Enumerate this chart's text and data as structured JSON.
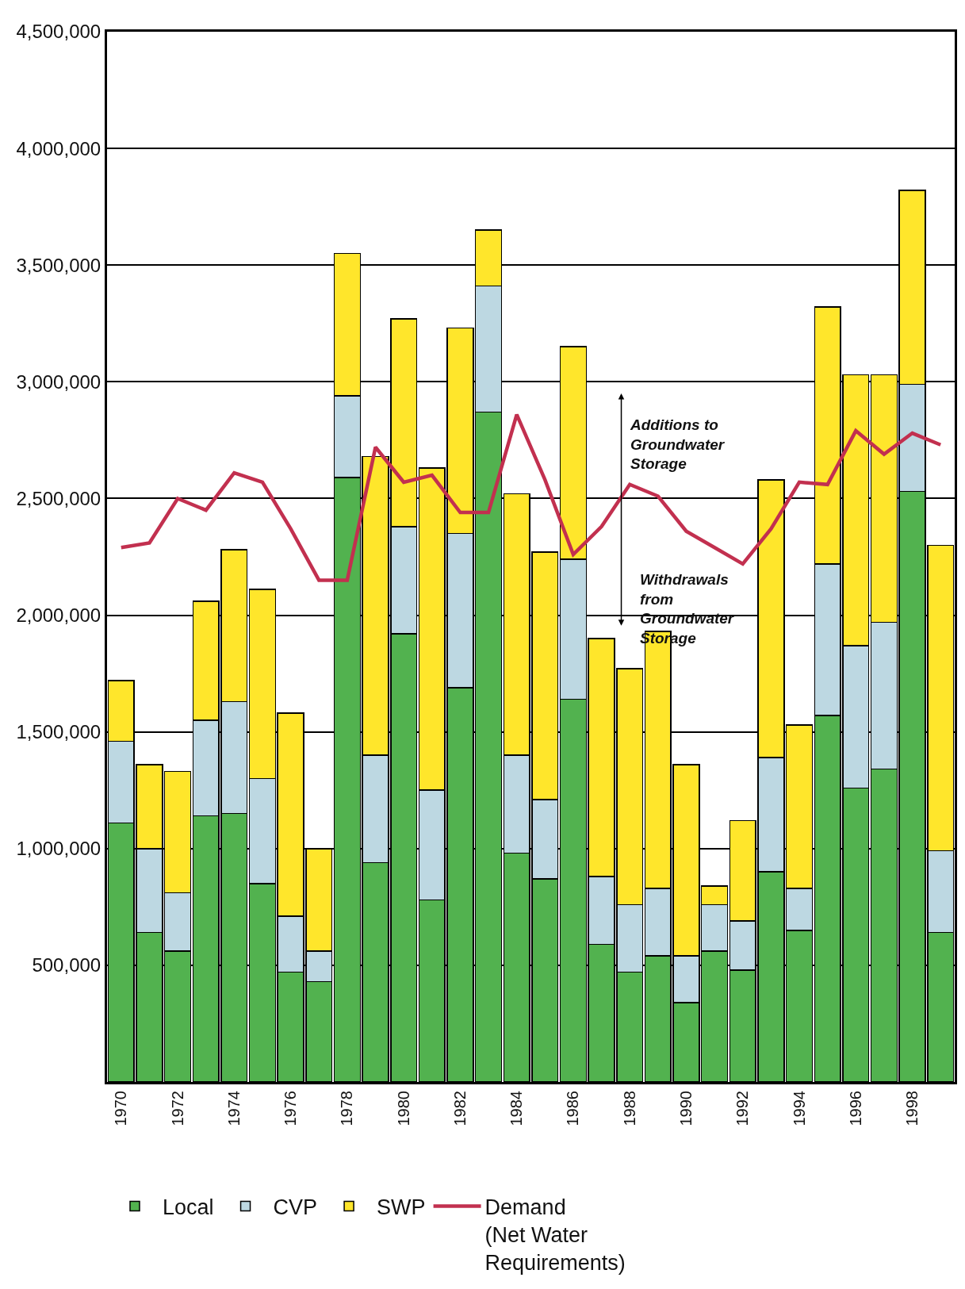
{
  "chart_data": {
    "type": "bar",
    "stacked": true,
    "x": [
      1970,
      1971,
      1972,
      1973,
      1974,
      1975,
      1976,
      1977,
      1978,
      1979,
      1980,
      1981,
      1982,
      1983,
      1984,
      1985,
      1986,
      1987,
      1988,
      1989,
      1990,
      1991,
      1992,
      1993,
      1994,
      1995,
      1996,
      1997,
      1998,
      1999
    ],
    "series": [
      {
        "name": "Local",
        "color": "#52b24f",
        "values": [
          1110000,
          640000,
          560000,
          1140000,
          1150000,
          850000,
          470000,
          430000,
          2590000,
          940000,
          1920000,
          780000,
          1690000,
          2870000,
          980000,
          870000,
          1640000,
          590000,
          470000,
          540000,
          340000,
          560000,
          480000,
          900000,
          650000,
          1570000,
          1260000,
          1340000,
          2530000,
          640000
        ]
      },
      {
        "name": "CVP",
        "color": "#bdd8e2",
        "values": [
          350000,
          360000,
          250000,
          410000,
          480000,
          450000,
          240000,
          130000,
          350000,
          460000,
          460000,
          470000,
          660000,
          540000,
          420000,
          340000,
          600000,
          290000,
          290000,
          290000,
          200000,
          200000,
          210000,
          490000,
          180000,
          650000,
          610000,
          630000,
          460000,
          350000
        ]
      },
      {
        "name": "SWP",
        "color": "#ffe62b",
        "values": [
          260000,
          360000,
          520000,
          510000,
          650000,
          810000,
          870000,
          440000,
          610000,
          1280000,
          890000,
          1380000,
          880000,
          240000,
          1120000,
          1060000,
          910000,
          1020000,
          1010000,
          1100000,
          820000,
          80000,
          430000,
          1190000,
          700000,
          1100000,
          1160000,
          1060000,
          830000,
          1310000
        ]
      },
      {
        "name": "Demand\n(Net Water\nRequirements)",
        "type": "line",
        "color": "#c2304f",
        "values": [
          2290000,
          2310000,
          2500000,
          2450000,
          2610000,
          2570000,
          2370000,
          2150000,
          2150000,
          2720000,
          2570000,
          2600000,
          2440000,
          2440000,
          2860000,
          2580000,
          2260000,
          2380000,
          2560000,
          2510000,
          2360000,
          2290000,
          2220000,
          2370000,
          2570000,
          2560000,
          2790000,
          2690000,
          2780000,
          2730000
        ]
      }
    ],
    "xlim": [
      1969.5,
      1999.5
    ],
    "xticks": [
      1970,
      1972,
      1974,
      1976,
      1978,
      1980,
      1982,
      1984,
      1986,
      1988,
      1990,
      1992,
      1994,
      1996,
      1998
    ],
    "ylim": [
      0,
      4500000
    ],
    "yticks": [
      {
        "value": 500000,
        "label": "500,000"
      },
      {
        "value": 1000000,
        "label": "1,000,000"
      },
      {
        "value": 1500000,
        "label": "1,500,000"
      },
      {
        "value": 2000000,
        "label": "2,000,000"
      },
      {
        "value": 2500000,
        "label": "2,500,000"
      },
      {
        "value": 3000000,
        "label": "3,000,000"
      },
      {
        "value": 3500000,
        "label": "3,500,000"
      },
      {
        "value": 4000000,
        "label": "4,000,000"
      },
      {
        "value": 4500000,
        "label": "4,500,000"
      }
    ],
    "grid": "y",
    "legend": "bottom",
    "annotations": [
      "Additions to\nGroundwater\nStorage",
      "Withdrawals\nfrom\nGroundwater\nStorage"
    ]
  }
}
